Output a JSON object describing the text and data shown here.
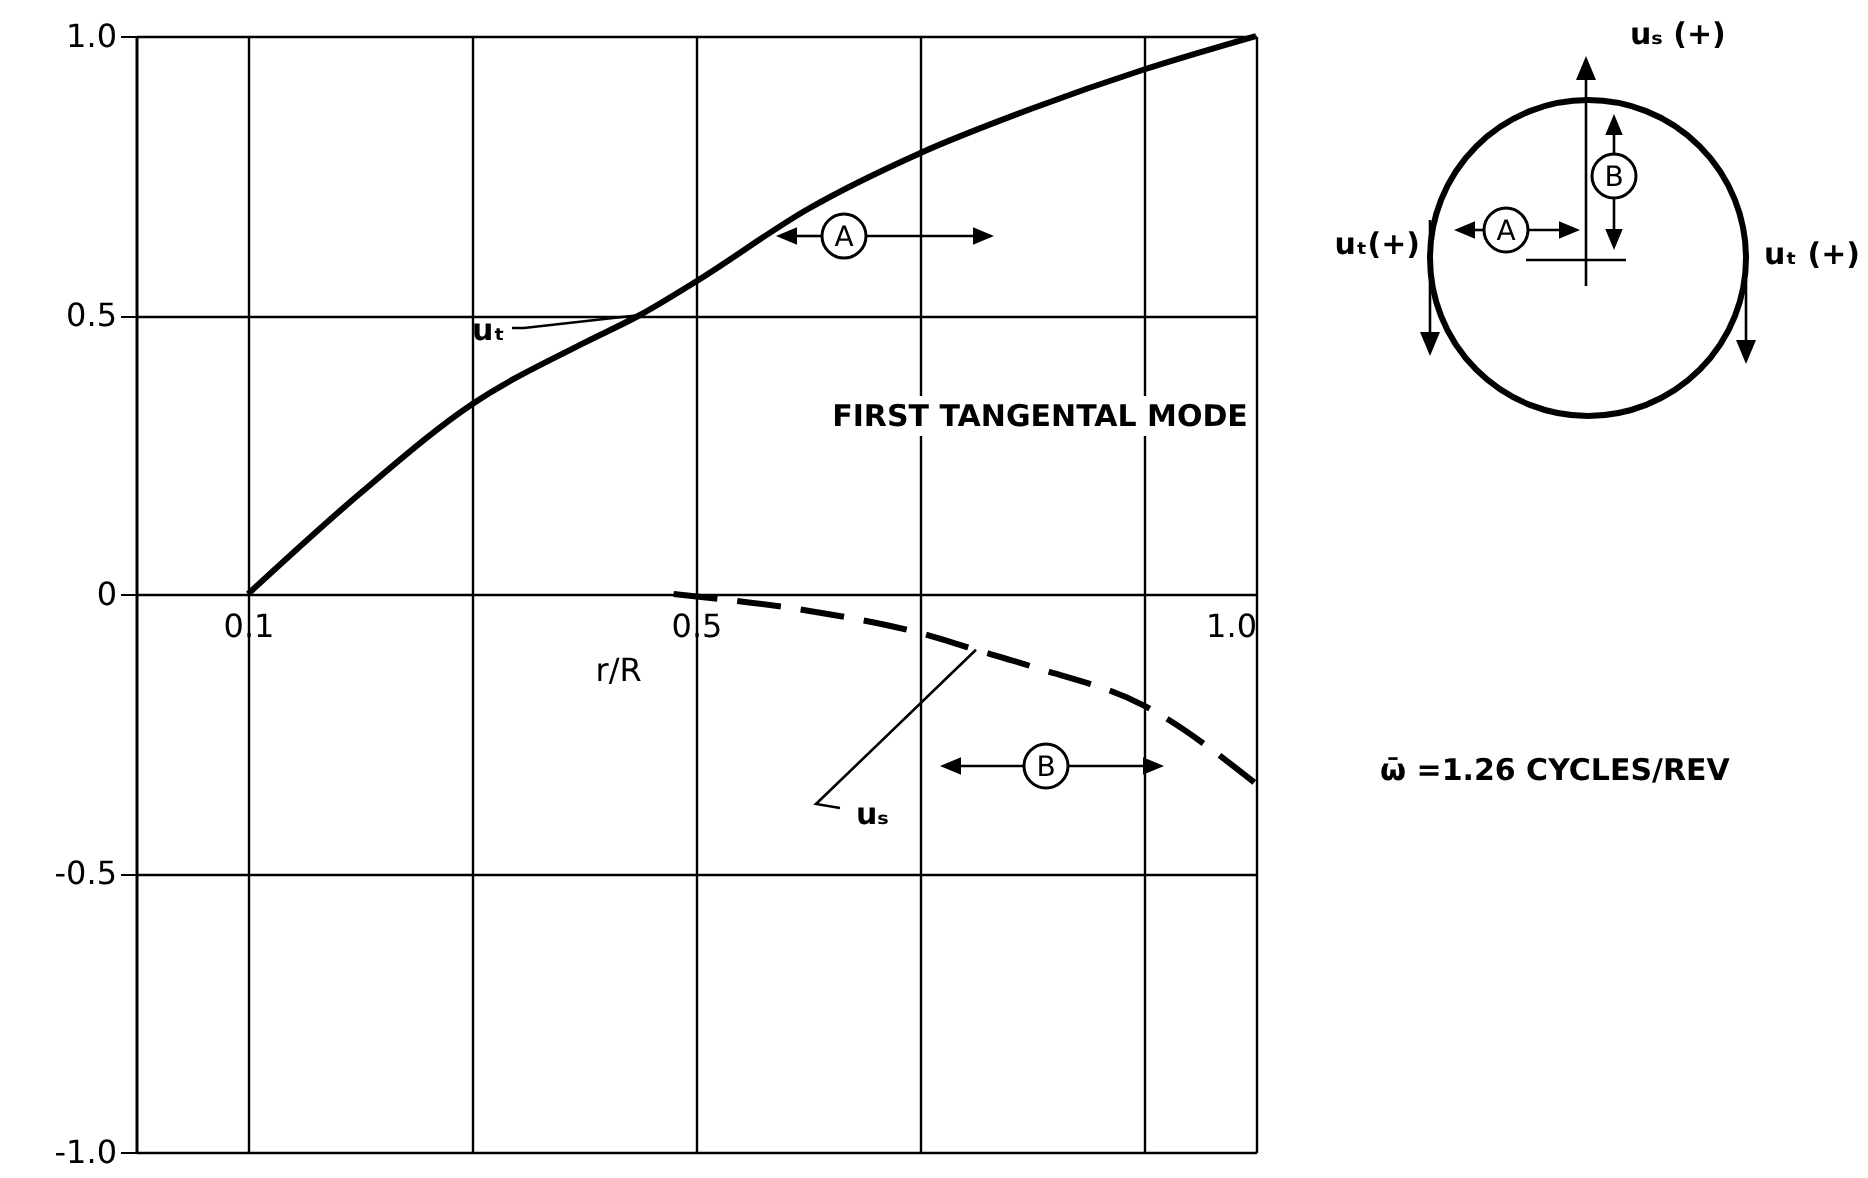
{
  "chart_data": {
    "type": "line",
    "xlabel": "r/R",
    "xlim": [
      0,
      1
    ],
    "ylim": [
      -1,
      1
    ],
    "xticks": [
      0.1,
      {
        "value": 0.3,
        "label": null
      },
      0.5,
      {
        "value": 0.7,
        "label": null
      },
      {
        "value": 0.9,
        "label": null
      },
      {
        "value": 1,
        "label": "1.0"
      }
    ],
    "yticks": [
      {
        "value": 1,
        "label": "1.0"
      },
      0.5,
      0,
      -0.5,
      {
        "value": -1,
        "label": "-1.0"
      }
    ],
    "grid": true,
    "marker": "none",
    "series": [
      {
        "name": "uₜ",
        "color": "#000000",
        "line_style": "solid",
        "x": [
          0.1,
          0.2,
          0.3,
          0.4,
          0.45,
          0.5,
          0.6,
          0.7,
          0.8,
          0.9,
          1.0
        ],
        "values": [
          0,
          0.18,
          0.34,
          0.45,
          0.5,
          0.56,
          0.69,
          0.79,
          0.87,
          0.94,
          1.0
        ]
      },
      {
        "name": "uₛ",
        "color": "#000000",
        "line_style": "dashed",
        "x": [
          0.48,
          0.6,
          0.7,
          0.75,
          0.8,
          0.9,
          1.0
        ],
        "values": [
          0,
          -0.03,
          -0.07,
          -0.1,
          -0.13,
          -0.2,
          -0.34
        ]
      }
    ],
    "annotations": [
      "A",
      "B",
      "FIRST TANGENTAL MODE",
      "ω̄ =1.26 CYCLES/REV",
      "uₛ (+)",
      "uₜ(+)",
      "uₜ (+)",
      "A",
      "B"
    ]
  }
}
